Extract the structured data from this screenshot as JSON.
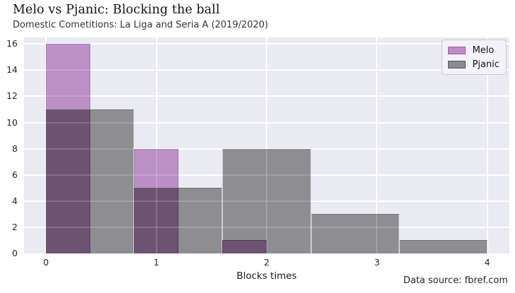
{
  "figure": {
    "title": "Melo vs Pjanic: Blocking the ball",
    "subtitle": "Domestic Cometitions: La Liga and Seria A (2019/2020)",
    "source_note": "Data source: fbref.com"
  },
  "chart_data": {
    "type": "bar",
    "subtype": "layered-histogram",
    "title": "Melo vs Pjanic: Blocking the ball",
    "xlabel": "Blocks times",
    "ylabel": "",
    "x_ticks": [
      0,
      1,
      2,
      3,
      4
    ],
    "y_ticks": [
      0,
      2,
      4,
      6,
      8,
      10,
      12,
      14,
      16
    ],
    "xlim": [
      -0.2,
      4.2
    ],
    "ylim": [
      0,
      16.5
    ],
    "grid": true,
    "plot_bg": "#eaeaf2",
    "grid_color": "#ffffff",
    "overlap_fill": "#6d5372",
    "series": [
      {
        "name": "Melo",
        "fill": "#ba90c5",
        "bins": [
          {
            "from": 0.0,
            "to": 0.4,
            "count": 16
          },
          {
            "from": 0.8,
            "to": 1.2,
            "count": 8
          },
          {
            "from": 1.6,
            "to": 2.0,
            "count": 1
          }
        ],
        "blocks_counts": {
          "0": 16,
          "1": 8,
          "2": 1
        }
      },
      {
        "name": "Pjanic",
        "fill": "#8e8d91",
        "bins": [
          {
            "from": 0.0,
            "to": 0.8,
            "count": 11
          },
          {
            "from": 0.8,
            "to": 1.6,
            "count": 5
          },
          {
            "from": 1.6,
            "to": 2.4,
            "count": 8
          },
          {
            "from": 2.4,
            "to": 3.2,
            "count": 3
          },
          {
            "from": 3.2,
            "to": 4.0,
            "count": 1
          }
        ],
        "blocks_counts": {
          "0": 11,
          "1": 5,
          "2": 8,
          "3": 3,
          "4": 1
        }
      }
    ],
    "legend": {
      "position": "upper-right",
      "items": [
        {
          "label": "Melo",
          "swatch_fill": "#c189c8",
          "swatch_border": "#9a5fa5"
        },
        {
          "label": "Pjanic",
          "swatch_fill": "#8c8b8f",
          "swatch_border": "#58565a"
        }
      ]
    }
  }
}
